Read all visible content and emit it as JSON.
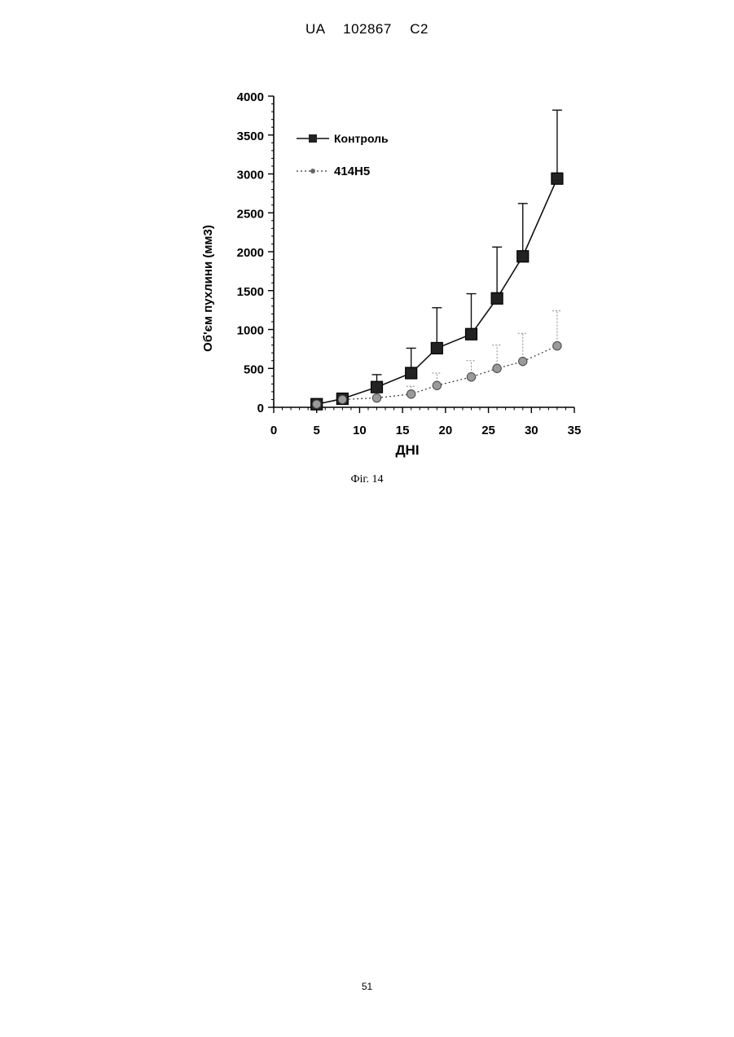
{
  "header": {
    "text": "UA  102867  C2"
  },
  "caption": "Фіг. 14",
  "page_number": "51",
  "chart_data": {
    "type": "line",
    "xlabel": "ДНІ",
    "ylabel": "Об'єм пухлини (мм3)",
    "xlim": [
      0,
      35
    ],
    "ylim": [
      0,
      4000
    ],
    "xticks": [
      0,
      5,
      10,
      15,
      20,
      25,
      30,
      35
    ],
    "yticks": [
      0,
      500,
      1000,
      1500,
      2000,
      2500,
      3000,
      3500,
      4000
    ],
    "legend_position": "top-left",
    "series": [
      {
        "name": "Контроль",
        "line_style": "solid",
        "marker": "square",
        "color": "#111111",
        "x": [
          5,
          8,
          12,
          16,
          19,
          23,
          26,
          29,
          33
        ],
        "y": [
          40,
          110,
          260,
          440,
          760,
          940,
          1400,
          1940,
          2940
        ],
        "error_upper": [
          40,
          110,
          420,
          760,
          1280,
          1460,
          2060,
          2620,
          3820
        ]
      },
      {
        "name": "414H5",
        "line_style": "dotted",
        "marker": "circle",
        "color": "#333333",
        "x": [
          5,
          8,
          12,
          16,
          19,
          23,
          26,
          29,
          33
        ],
        "y": [
          40,
          100,
          120,
          170,
          280,
          390,
          500,
          590,
          790
        ],
        "error_upper": [
          40,
          100,
          120,
          270,
          440,
          600,
          800,
          950,
          1240
        ]
      }
    ]
  }
}
